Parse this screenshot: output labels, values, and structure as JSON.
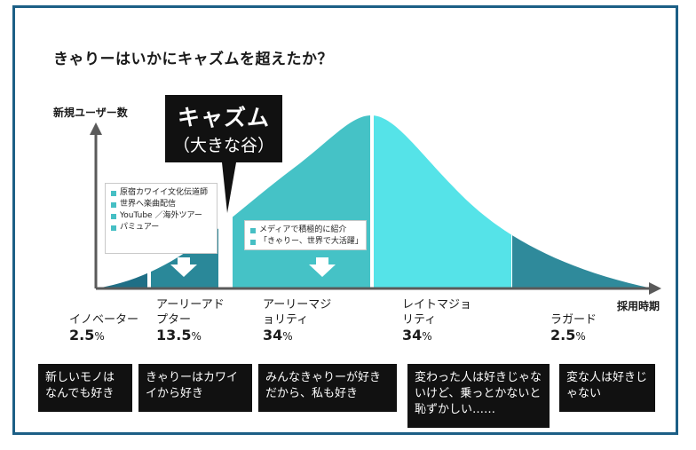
{
  "title": "きゃりーはいかにキャズムを超えたか？",
  "axes": {
    "y_label": "新規ユーザー数",
    "x_label": "採用時期"
  },
  "chasm": {
    "line1": "キャズム",
    "line2": "（大きな谷）"
  },
  "notes": [
    {
      "items": [
        "原宿カワイイ文化伝道師",
        "世界へ楽曲配信",
        "YouTube ／海外ツアー",
        "パミュアー"
      ]
    },
    {
      "items": [
        "メディアで積極的に紹介",
        "「きゃりー、世界で大活躍」"
      ]
    }
  ],
  "segments": [
    {
      "name": "イノベーター",
      "percent": "2.5",
      "description": "新しいモノはなんでも好き",
      "color": "#1f6f86"
    },
    {
      "name": "アーリーアドプター",
      "percent": "13.5",
      "description": "きゃりーはカワイイから好き",
      "color": "#2a8899"
    },
    {
      "name": "アーリーマジョリティ",
      "percent": "34",
      "description": "みんなきゃりーが好きだから、私も好き",
      "color": "#45c2c6"
    },
    {
      "name": "レイトマジョリティ",
      "percent": "34",
      "description": "変わった人は好きじゃないけど、乗っとかないと恥ずかしい……",
      "color": "#55e3e8"
    },
    {
      "name": "ラガード",
      "percent": "2.5",
      "description": "変な人は好きじゃない",
      "color": "#2f8a9b"
    }
  ],
  "chart_data": {
    "type": "area",
    "x": [
      "イノベーター",
      "アーリーアドプター",
      "アーリーマジョリティ",
      "レイトマジョリティ",
      "ラガード"
    ],
    "values": [
      2.5,
      13.5,
      34,
      34,
      2.5
    ],
    "unit": "%",
    "xlabel": "採用時期",
    "ylabel": "新規ユーザー数"
  },
  "colors": {
    "frame": "#1c5f86",
    "axis": "#5a5a5a",
    "label_box": "#111111",
    "arrow": "#ffffff"
  },
  "unit_symbol": "%"
}
